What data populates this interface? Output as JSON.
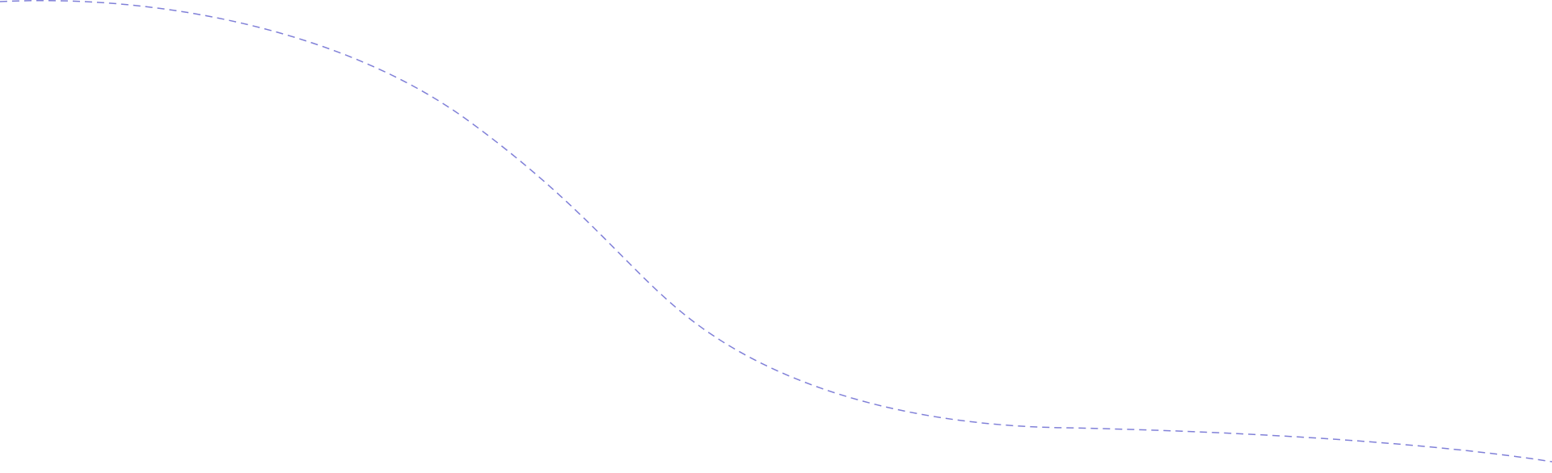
{
  "decoration": {
    "curve_color": "#8080d8",
    "line_style": "dashed"
  }
}
